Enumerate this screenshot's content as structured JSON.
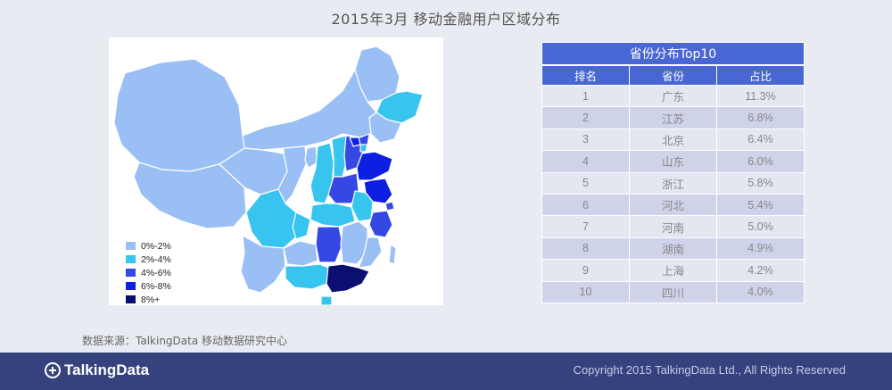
{
  "title": "2015年3月 移动金融用户区域分布",
  "colors": {
    "lvl1": "#99bff5",
    "lvl2": "#37c4ef",
    "lvl3": "#3548e3",
    "lvl4": "#0d1fe3",
    "lvl5": "#0c0f72",
    "header": "#4866d4",
    "footer": "#36427d"
  },
  "legend": [
    {
      "label": "0%-2%",
      "color": "#99bff5"
    },
    {
      "label": "2%-4%",
      "color": "#37c4ef"
    },
    {
      "label": "4%-6%",
      "color": "#3548e3"
    },
    {
      "label": "6%-8%",
      "color": "#0d1fe3"
    },
    {
      "label": "8%+",
      "color": "#0c0f72"
    }
  ],
  "table": {
    "title": "省份分布Top10",
    "headers": [
      "排名",
      "省份",
      "占比"
    ],
    "rows": [
      {
        "rank": "1",
        "province": "广东",
        "share": "11.3%"
      },
      {
        "rank": "2",
        "province": "江苏",
        "share": "6.8%"
      },
      {
        "rank": "3",
        "province": "北京",
        "share": "6.4%"
      },
      {
        "rank": "4",
        "province": "山东",
        "share": "6.0%"
      },
      {
        "rank": "5",
        "province": "浙江",
        "share": "5.8%"
      },
      {
        "rank": "6",
        "province": "河北",
        "share": "5.4%"
      },
      {
        "rank": "7",
        "province": "河南",
        "share": "5.0%"
      },
      {
        "rank": "8",
        "province": "湖南",
        "share": "4.9%"
      },
      {
        "rank": "9",
        "province": "上海",
        "share": "4.2%"
      },
      {
        "rank": "10",
        "province": "四川",
        "share": "4.0%"
      }
    ]
  },
  "source": "数据来源：TalkingData 移动数据研究中心",
  "footer": {
    "logo_text": "TalkingData",
    "copyright": "Copyright 2015 TalkingData Ltd., All Rights Reserved"
  }
}
